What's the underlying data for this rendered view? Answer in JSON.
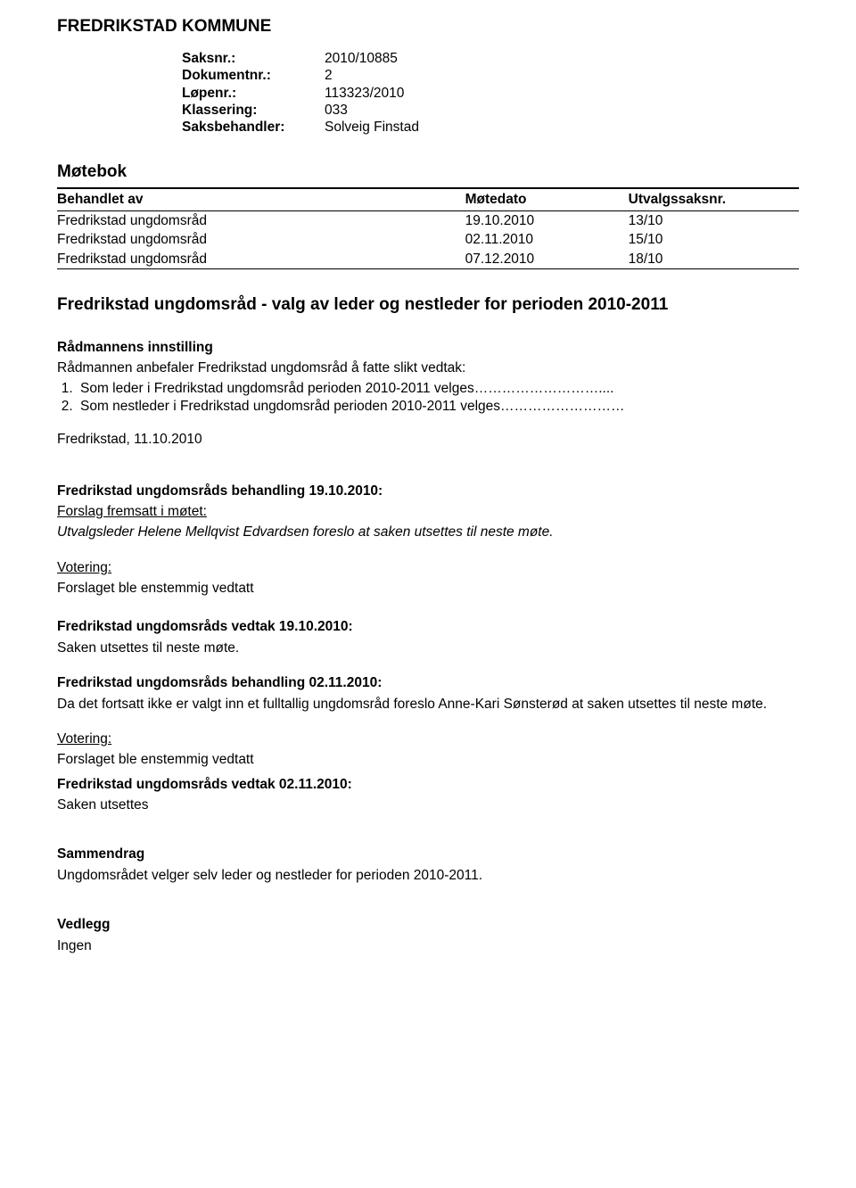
{
  "org_title": "FREDRIKSTAD KOMMUNE",
  "meta": {
    "saksnr_label": "Saksnr.:",
    "saksnr_value": "2010/10885",
    "dokumentnr_label": "Dokumentnr.:",
    "dokumentnr_value": "2",
    "lopenr_label": "Løpenr.:",
    "lopenr_value": "113323/2010",
    "klassering_label": "Klassering:",
    "klassering_value": "033",
    "saksbehandler_label": "Saksbehandler:",
    "saksbehandler_value": "Solveig Finstad"
  },
  "motebok_title": "Møtebok",
  "case_table": {
    "headers": {
      "body": "Behandlet av",
      "date": "Møtedato",
      "num": "Utvalgssaksnr."
    },
    "rows": [
      {
        "body": "Fredrikstad ungdomsråd",
        "date": "19.10.2010",
        "num": "13/10"
      },
      {
        "body": "Fredrikstad ungdomsråd",
        "date": "02.11.2010",
        "num": "15/10"
      },
      {
        "body": "Fredrikstad ungdomsråd",
        "date": "07.12.2010",
        "num": "18/10"
      }
    ]
  },
  "case_heading": "Fredrikstad ungdomsråd - valg av leder og nestleder for perioden 2010-2011",
  "innstilling_heading": "Rådmannens innstilling",
  "innstilling_intro": "Rådmannen anbefaler Fredrikstad ungdomsråd å fatte slikt vedtak:",
  "innstilling_items": [
    "Som leder i Fredrikstad ungdomsråd perioden 2010-2011 velges………………………....",
    "Som nestleder i Fredrikstad ungdomsråd perioden 2010-2011 velges………………………"
  ],
  "fredrikstad_date": "Fredrikstad, 11.10.2010",
  "behandling1_heading": "Fredrikstad ungdomsråds behandling 19.10.2010:",
  "forslag_label": "Forslag fremsatt i møtet:",
  "forslag1_text": "Utvalgsleder Helene Mellqvist Edvardsen foreslo at saken utsettes til neste møte.",
  "votering_label": "Votering:",
  "votering_text": "Forslaget ble enstemmig vedtatt",
  "vedtak1_heading": "Fredrikstad ungdomsråds vedtak 19.10.2010:",
  "vedtak1_text": "Saken utsettes til neste møte.",
  "behandling2_heading": "Fredrikstad ungdomsråds behandling 02.11.2010:",
  "behandling2_text": "Da det fortsatt ikke er valgt inn et fulltallig ungdomsråd foreslo Anne-Kari Sønsterød at saken utsettes til neste møte.",
  "vedtak2_heading": "Fredrikstad ungdomsråds vedtak  02.11.2010:",
  "vedtak2_text": "Saken utsettes",
  "sammendrag_heading": "Sammendrag",
  "sammendrag_text": "Ungdomsrådet velger selv leder og nestleder for perioden 2010-2011.",
  "vedlegg_heading": "Vedlegg",
  "vedlegg_text": "Ingen"
}
